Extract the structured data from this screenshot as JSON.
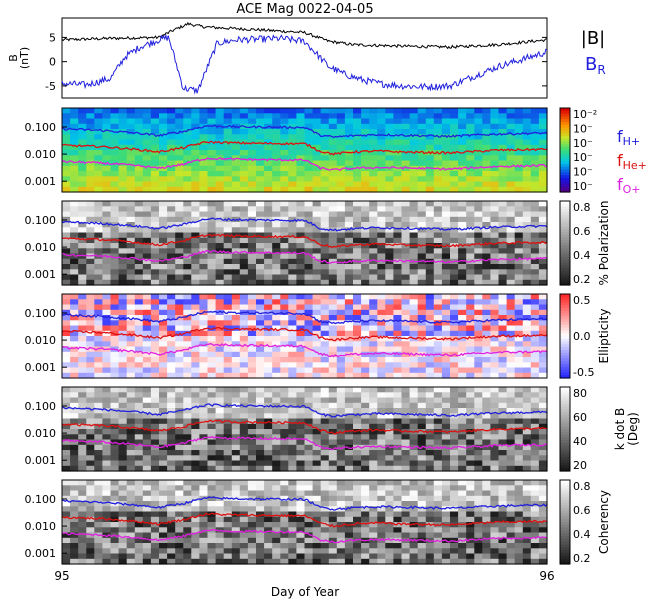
{
  "title": "ACE Mag 0022-04-05",
  "xaxis": {
    "label": "Day of Year",
    "ticks": [
      "95",
      "96"
    ],
    "range": [
      95,
      96
    ]
  },
  "chart_data": [
    {
      "type": "line",
      "panel": "magnetic-field",
      "ylabel": "B\n(nT)",
      "yticks": [
        "5",
        "0",
        "-5"
      ],
      "ylim": [
        -7.5,
        9
      ],
      "series": [
        {
          "name": "|B|",
          "color": "#000000",
          "x": [
            95.0,
            95.1,
            95.2,
            95.23,
            95.26,
            95.29,
            95.32,
            95.36,
            95.4,
            95.5,
            95.55,
            95.6,
            95.7,
            95.8,
            95.9,
            96.0
          ],
          "values": [
            4.5,
            4.8,
            5.0,
            6.5,
            7.8,
            7.2,
            7.0,
            6.8,
            6.6,
            6.0,
            4.2,
            3.5,
            3.2,
            3.0,
            3.5,
            4.5
          ]
        },
        {
          "name": "B",
          "subscript": "R",
          "color": "#2020dd",
          "x": [
            95.0,
            95.05,
            95.1,
            95.13,
            95.16,
            95.2,
            95.22,
            95.25,
            95.28,
            95.32,
            95.36,
            95.4,
            95.45,
            95.5,
            95.55,
            95.58,
            95.62,
            95.66,
            95.7,
            95.75,
            95.8,
            95.85,
            95.9,
            95.95,
            96.0
          ],
          "values": [
            -4.5,
            -4.8,
            -3.5,
            1.0,
            3.0,
            4.5,
            5.0,
            -5.5,
            -6.0,
            3.8,
            4.5,
            4.6,
            4.8,
            4.2,
            -1.0,
            -2.5,
            -3.8,
            -4.6,
            -5.0,
            -5.2,
            -5.0,
            -3.0,
            -1.0,
            0.5,
            2.0
          ]
        }
      ]
    },
    {
      "type": "heatmap",
      "panel": "power-spectrum",
      "yticks": [
        "0.100",
        "0.010",
        "0.001"
      ],
      "ylim": [
        0.0004,
        0.5
      ],
      "yscale": "log",
      "colorbar": {
        "ticks": [
          "10⁻²",
          "10⁻",
          "10⁻",
          "10⁻",
          "10⁻",
          "10⁻"
        ],
        "scheme": "rainbow"
      },
      "lines": [
        {
          "name": "fH+",
          "label": "f",
          "subscript": "H+",
          "color": "#2020dd"
        },
        {
          "name": "fHe+",
          "label": "f",
          "subscript": "He+",
          "color": "#dd1010"
        },
        {
          "name": "fO+",
          "label": "f",
          "subscript": "O+",
          "color": "#e020e0"
        }
      ]
    },
    {
      "type": "heatmap",
      "panel": "polarization",
      "yticks": [
        "0.100",
        "0.010",
        "0.001"
      ],
      "ylim": [
        0.0004,
        0.5
      ],
      "yscale": "log",
      "colorbar": {
        "label": "% Polarization",
        "ticks": [
          "0.8",
          "0.6",
          "0.4",
          "0.2"
        ],
        "range": [
          0,
          1
        ],
        "scheme": "grayscale"
      }
    },
    {
      "type": "heatmap",
      "panel": "ellipticity",
      "yticks": [
        "0.100",
        "0.010",
        "0.001"
      ],
      "ylim": [
        0.0004,
        0.5
      ],
      "yscale": "log",
      "colorbar": {
        "label": "Ellipticity",
        "ticks": [
          "0.5",
          "0.0",
          "-0.5"
        ],
        "range": [
          -1,
          1
        ],
        "scheme": "blue-white-red"
      }
    },
    {
      "type": "heatmap",
      "panel": "k-dot-b",
      "yticks": [
        "0.100",
        "0.010",
        "0.001"
      ],
      "ylim": [
        0.0004,
        0.5
      ],
      "yscale": "log",
      "colorbar": {
        "label": "k dot B\n(Deg)",
        "ticks": [
          "80",
          "60",
          "40",
          "20"
        ],
        "range": [
          0,
          90
        ],
        "scheme": "grayscale"
      }
    },
    {
      "type": "heatmap",
      "panel": "coherency",
      "yticks": [
        "0.100",
        "0.010",
        "0.001"
      ],
      "ylim": [
        0.0004,
        0.5
      ],
      "yscale": "log",
      "colorbar": {
        "label": "Coherency",
        "ticks": [
          "0.8",
          "0.6",
          "0.4",
          "0.2"
        ],
        "range": [
          0,
          1
        ],
        "scheme": "grayscale"
      }
    }
  ],
  "gyrofrequency_lines": {
    "x": [
      95.0,
      95.08,
      95.15,
      95.2,
      95.25,
      95.3,
      95.35,
      95.4,
      95.5,
      95.53,
      95.56,
      95.6,
      95.65,
      95.7,
      95.8,
      95.9,
      96.0
    ],
    "fH+": [
      0.085,
      0.075,
      0.06,
      0.048,
      0.068,
      0.11,
      0.103,
      0.1,
      0.096,
      0.05,
      0.042,
      0.048,
      0.052,
      0.05,
      0.045,
      0.055,
      0.06
    ],
    "fHe+": [
      0.021,
      0.019,
      0.015,
      0.012,
      0.017,
      0.028,
      0.026,
      0.025,
      0.024,
      0.013,
      0.01,
      0.012,
      0.013,
      0.012,
      0.011,
      0.014,
      0.015
    ],
    "fO+": [
      0.0053,
      0.0047,
      0.0038,
      0.003,
      0.0042,
      0.007,
      0.0065,
      0.0063,
      0.006,
      0.0031,
      0.0026,
      0.003,
      0.0032,
      0.0031,
      0.0028,
      0.0035,
      0.0038
    ]
  }
}
